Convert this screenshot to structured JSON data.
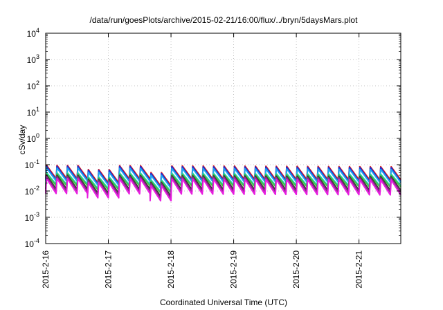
{
  "chart_data": {
    "type": "line",
    "title": "/data/run/goesPlots/archive/2015-02-21/16:00/flux/../bryn/5daysMars.plot",
    "xlabel": "Coordinated Universal Time (UTC)",
    "ylabel": "cSv/day",
    "yscale": "log",
    "ylim": [
      0.0001,
      10000
    ],
    "y_ticks": [
      {
        "value": 0.0001,
        "base": "10",
        "exp": "-4"
      },
      {
        "value": 0.001,
        "base": "10",
        "exp": "-3"
      },
      {
        "value": 0.01,
        "base": "10",
        "exp": "-2"
      },
      {
        "value": 0.1,
        "base": "10",
        "exp": "-1"
      },
      {
        "value": 1,
        "base": "10",
        "exp": "0"
      },
      {
        "value": 10,
        "base": "10",
        "exp": "1"
      },
      {
        "value": 100,
        "base": "10",
        "exp": "2"
      },
      {
        "value": 1000,
        "base": "10",
        "exp": "3"
      },
      {
        "value": 10000,
        "base": "10",
        "exp": "4"
      }
    ],
    "xlim": [
      "2015-02-16T00:00",
      "2015-02-21T16:00"
    ],
    "x_ticks": [
      "2015-2-16",
      "2015-2-17",
      "2015-2-18",
      "2015-2-19",
      "2015-2-20",
      "2015-2-21"
    ],
    "grid": true,
    "legend": "none",
    "series": [
      {
        "color": "#e0201c",
        "peak": 0.095,
        "trough": 0.03
      },
      {
        "color": "#1f2bd0",
        "peak": 0.088,
        "trough": 0.026
      },
      {
        "color": "#1fa5f0",
        "peak": 0.075,
        "trough": 0.024
      },
      {
        "color": "#20d0c0",
        "peak": 0.05,
        "trough": 0.018
      },
      {
        "color": "#3ec93e",
        "peak": 0.045,
        "trough": 0.016
      },
      {
        "color": "#3a3a3a",
        "peak": 0.04,
        "trough": 0.012
      },
      {
        "color": "#8c2a8c",
        "peak": 0.035,
        "trough": 0.01
      },
      {
        "color": "#e81ce0",
        "peak": 0.03,
        "trough": 0.008
      }
    ],
    "cycle_hours": 4,
    "dips": [
      {
        "time": "2015-02-16T21:00",
        "factor": 0.7
      },
      {
        "time": "2015-02-17T18:00",
        "factor": 0.55
      }
    ]
  }
}
